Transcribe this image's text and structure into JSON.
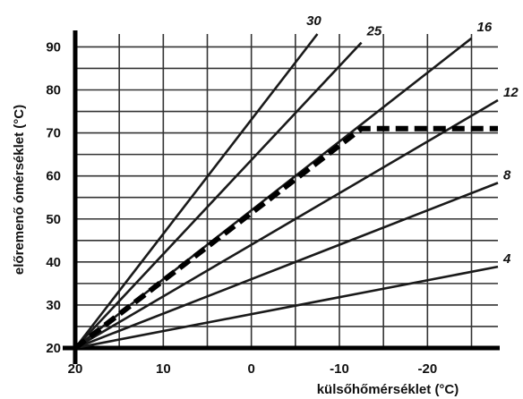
{
  "chart_data": {
    "type": "line",
    "xlabel": "külsőhőmérséklet (°C)",
    "ylabel": "előremenő ómérséklet (°C)",
    "xlim": [
      20,
      -28
    ],
    "ylim": [
      20,
      93
    ],
    "x_ticks": [
      20,
      10,
      0,
      -10,
      -20
    ],
    "x_tick_labels": [
      "20",
      "10",
      "0",
      "-10",
      "-20"
    ],
    "y_ticks": [
      20,
      30,
      40,
      50,
      60,
      70,
      80,
      90
    ],
    "y_tick_labels": [
      "20",
      "30",
      "40",
      "50",
      "60",
      "70",
      "80",
      "90"
    ],
    "grid": true,
    "series": [
      {
        "name": "30",
        "x": [
          20,
          -7.5
        ],
        "y": [
          20,
          93
        ]
      },
      {
        "name": "25",
        "x": [
          20,
          -12.5
        ],
        "y": [
          20,
          91
        ]
      },
      {
        "name": "16",
        "x": [
          20,
          -25
        ],
        "y": [
          20,
          92
        ]
      },
      {
        "name": "12",
        "x": [
          20,
          -28
        ],
        "y": [
          20,
          77.6
        ]
      },
      {
        "name": "8",
        "x": [
          20,
          -28
        ],
        "y": [
          20,
          58.4
        ]
      },
      {
        "name": "4",
        "x": [
          20,
          -28
        ],
        "y": [
          20,
          38.9
        ]
      }
    ],
    "limit_line": {
      "style": "dashed",
      "x": [
        20,
        -12.5,
        -28
      ],
      "y": [
        20,
        71,
        71
      ]
    }
  }
}
